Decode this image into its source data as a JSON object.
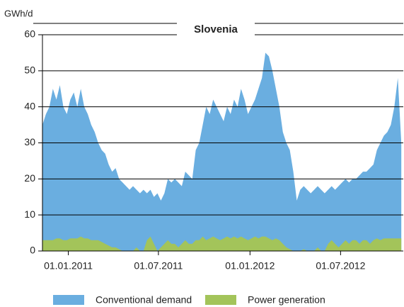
{
  "chart_data": {
    "type": "area",
    "title": "Slovenia",
    "y_label": "GWh/d",
    "x": [
      "2010-11-10",
      "2010-11-17",
      "2010-11-24",
      "2010-12-01",
      "2010-12-08",
      "2010-12-15",
      "2010-12-22",
      "2010-12-29",
      "2011-01-05",
      "2011-01-12",
      "2011-01-19",
      "2011-01-26",
      "2011-02-02",
      "2011-02-09",
      "2011-02-16",
      "2011-02-23",
      "2011-03-02",
      "2011-03-09",
      "2011-03-16",
      "2011-03-23",
      "2011-03-30",
      "2011-04-06",
      "2011-04-13",
      "2011-04-20",
      "2011-04-27",
      "2011-05-04",
      "2011-05-11",
      "2011-05-18",
      "2011-05-25",
      "2011-06-01",
      "2011-06-08",
      "2011-06-15",
      "2011-06-22",
      "2011-06-29",
      "2011-07-06",
      "2011-07-13",
      "2011-07-20",
      "2011-07-27",
      "2011-08-03",
      "2011-08-10",
      "2011-08-17",
      "2011-08-24",
      "2011-08-31",
      "2011-09-07",
      "2011-09-14",
      "2011-09-21",
      "2011-09-28",
      "2011-10-05",
      "2011-10-12",
      "2011-10-19",
      "2011-10-26",
      "2011-11-02",
      "2011-11-09",
      "2011-11-16",
      "2011-11-23",
      "2011-11-30",
      "2011-12-07",
      "2011-12-14",
      "2011-12-21",
      "2011-12-28",
      "2012-01-04",
      "2012-01-11",
      "2012-01-18",
      "2012-01-25",
      "2012-02-01",
      "2012-02-08",
      "2012-02-15",
      "2012-02-22",
      "2012-02-29",
      "2012-03-07",
      "2012-03-14",
      "2012-03-21",
      "2012-03-28",
      "2012-04-04",
      "2012-04-11",
      "2012-04-18",
      "2012-04-25",
      "2012-05-02",
      "2012-05-09",
      "2012-05-16",
      "2012-05-23",
      "2012-05-30",
      "2012-06-06",
      "2012-06-13",
      "2012-06-20",
      "2012-06-27",
      "2012-07-04",
      "2012-07-11",
      "2012-07-18",
      "2012-07-25",
      "2012-08-01",
      "2012-08-08",
      "2012-08-15",
      "2012-08-22",
      "2012-08-29",
      "2012-09-05",
      "2012-09-12",
      "2012-09-19",
      "2012-09-26",
      "2012-10-03",
      "2012-10-10",
      "2012-10-17",
      "2012-10-24",
      "2012-10-31"
    ],
    "series": [
      {
        "name": "Conventional demand",
        "color": "#6aaee0",
        "values": [
          35,
          38,
          40,
          45,
          42,
          46,
          40,
          38,
          42,
          44,
          40,
          45,
          40,
          38,
          35,
          33,
          30,
          28,
          27,
          24,
          22,
          23,
          20,
          19,
          18,
          17,
          18,
          17,
          16,
          17,
          16,
          17,
          15,
          16,
          14,
          16,
          20,
          19,
          20,
          19,
          18,
          22,
          21,
          20,
          28,
          30,
          35,
          40,
          38,
          42,
          40,
          38,
          36,
          40,
          38,
          42,
          40,
          45,
          42,
          38,
          40,
          42,
          45,
          48,
          55,
          54,
          50,
          45,
          40,
          33,
          30,
          28,
          22,
          14,
          17,
          18,
          17,
          16,
          17,
          18,
          17,
          16,
          17,
          18,
          17,
          18,
          19,
          20,
          19,
          20,
          20,
          21,
          22,
          22,
          23,
          24,
          28,
          30,
          32,
          33,
          35,
          40,
          48,
          30
        ]
      },
      {
        "name": "Power generation",
        "color": "#a3c45a",
        "values": [
          3,
          3,
          3,
          3,
          3.5,
          3.5,
          3,
          3,
          3.5,
          3.5,
          3.5,
          4,
          3.5,
          3.5,
          3,
          3,
          3,
          2.5,
          2,
          1.5,
          1,
          1,
          0.5,
          0,
          0,
          0,
          0,
          1,
          0,
          0,
          3,
          4,
          2,
          0,
          1,
          2,
          3,
          2,
          2,
          1,
          2,
          3,
          2,
          2,
          3,
          3,
          4,
          3,
          3.5,
          4,
          3.5,
          3,
          3.5,
          4,
          3.5,
          4,
          3.5,
          4,
          3.5,
          3,
          3.5,
          4,
          3.5,
          4,
          4,
          3.5,
          3,
          3.5,
          3,
          2,
          1,
          0.5,
          0,
          0,
          0,
          0.5,
          0,
          0,
          0,
          1,
          0,
          0,
          2,
          3,
          2,
          1,
          2,
          3,
          2,
          3,
          3,
          2,
          3,
          3,
          2,
          3,
          3.5,
          3,
          3.5,
          3.5,
          3.5,
          3.5,
          3.5,
          3.5
        ]
      }
    ],
    "xlim": [
      "2010-11-10",
      "2012-11-04"
    ],
    "xticks": [
      {
        "value": "2011-01-01",
        "label": "01.01.2011"
      },
      {
        "value": "2011-07-01",
        "label": "01.07.2011"
      },
      {
        "value": "2012-01-01",
        "label": "01.01.2012"
      },
      {
        "value": "2012-07-01",
        "label": "01.07.2012"
      }
    ],
    "ylim": [
      0,
      60
    ],
    "yticks": [
      0,
      10,
      20,
      30,
      40,
      50,
      60
    ],
    "grid": true,
    "legend": "bottom"
  }
}
